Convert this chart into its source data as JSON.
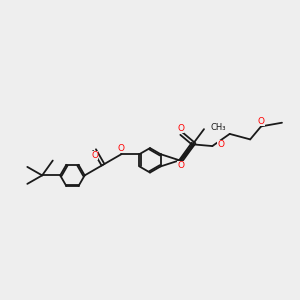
{
  "bg_color": "#eeeeee",
  "bond_color": "#1a1a1a",
  "oxygen_color": "#ff0000",
  "lw": 1.3,
  "dbo": 0.06,
  "figsize": [
    3.0,
    3.0
  ],
  "dpi": 100,
  "xlim": [
    0,
    10
  ],
  "ylim": [
    0,
    10
  ],
  "bl": 0.72
}
